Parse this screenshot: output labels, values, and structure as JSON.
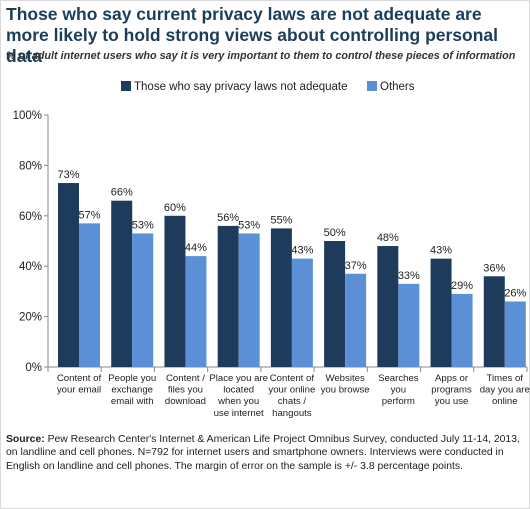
{
  "title": "Those who say current privacy laws are not adequate are more likely to hold strong views about controlling personal data",
  "subtitle": "% of adult internet users who say it is very important to them to control these pieces of information",
  "source_label": "Source:",
  "source_text": "Pew Research Center's Internet & American Life Project Omnibus Survey, conducted July 11-14, 2013, on landline and cell phones. N=792 for internet users and smartphone owners. Interviews were conducted in English on landline and cell phones. The margin of error on the sample is +/- 3.8 percentage points.",
  "colors": {
    "series1": "#1f3b5c",
    "series2": "#5b8fd6",
    "axis": "#888888",
    "title": "#1c3d5a"
  },
  "chart_data": {
    "type": "bar",
    "legend_position": "top",
    "grid": false,
    "ylim": [
      0,
      100
    ],
    "yticks": [
      "0%",
      "20%",
      "40%",
      "60%",
      "80%",
      "100%"
    ],
    "ytick_values": [
      0,
      20,
      40,
      60,
      80,
      100
    ],
    "categories": [
      [
        "Content of",
        "your email"
      ],
      [
        "People you",
        "exchange",
        "email with"
      ],
      [
        "Content /",
        "files you",
        "download"
      ],
      [
        "Place you are",
        "located",
        "when you",
        "use internet"
      ],
      [
        "Content of",
        "your online",
        "chats /",
        "hangouts"
      ],
      [
        "Websites",
        "you browse"
      ],
      [
        "Searches",
        "you",
        "perform"
      ],
      [
        "Apps or",
        "programs",
        "you use"
      ],
      [
        "Times of",
        "day you are",
        "online"
      ]
    ],
    "series": [
      {
        "name": "Those who say privacy laws not adequate",
        "values": [
          73,
          66,
          60,
          56,
          55,
          50,
          48,
          43,
          36
        ],
        "labels": [
          "73%",
          "66%",
          "60%",
          "56%",
          "55%",
          "50%",
          "48%",
          "43%",
          "36%"
        ]
      },
      {
        "name": "Others",
        "values": [
          57,
          53,
          44,
          53,
          43,
          37,
          33,
          29,
          26
        ],
        "labels": [
          "57%",
          "53%",
          "44%",
          "53%",
          "43%",
          "37%",
          "33%",
          "29%",
          "26%"
        ]
      }
    ]
  }
}
